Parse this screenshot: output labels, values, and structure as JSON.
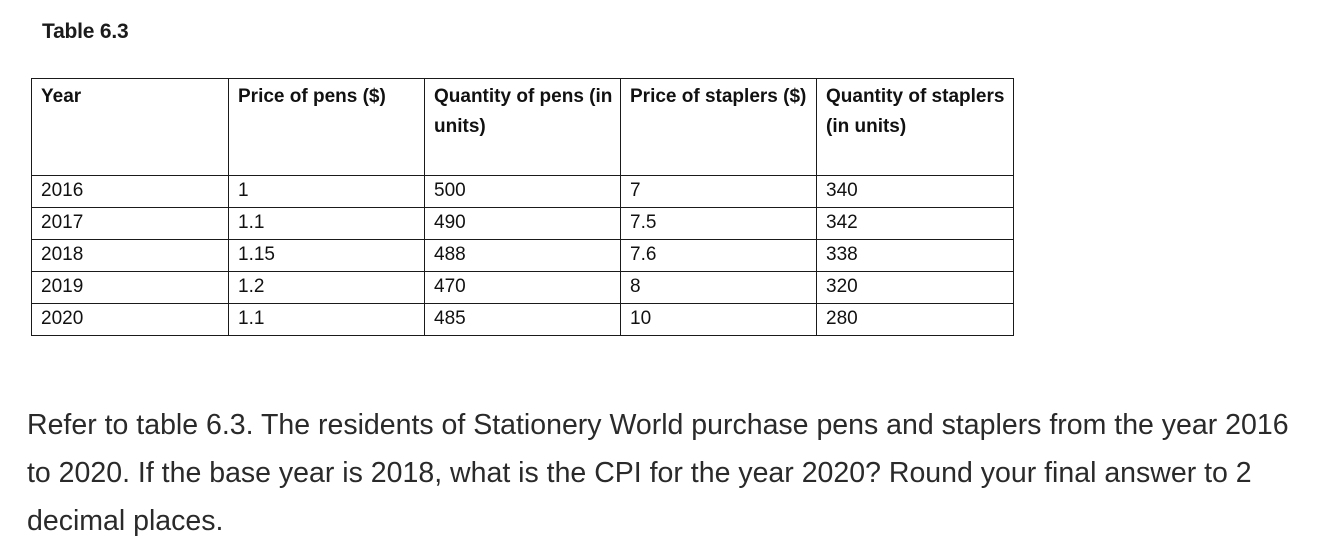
{
  "caption": "Table 6.3",
  "table": {
    "headers": [
      "Year",
      "Price of pens ($)",
      "Quantity of pens (in units)",
      "Price of staplers ($)",
      "Quantity of staplers (in units)"
    ],
    "rows": [
      [
        "2016",
        "1",
        "500",
        "7",
        "340"
      ],
      [
        "2017",
        "1.1",
        "490",
        "7.5",
        "342"
      ],
      [
        "2018",
        "1.15",
        "488",
        "7.6",
        "338"
      ],
      [
        "2019",
        "1.2",
        "470",
        "8",
        "320"
      ],
      [
        "2020",
        "1.1",
        "485",
        "10",
        "280"
      ]
    ]
  },
  "question": "Refer to table 6.3. The residents of Stationery World purchase pens and staplers from the year 2016 to 2020. If the base year is 2018, what is the CPI for the year 2020? Round your final answer to 2 decimal places."
}
